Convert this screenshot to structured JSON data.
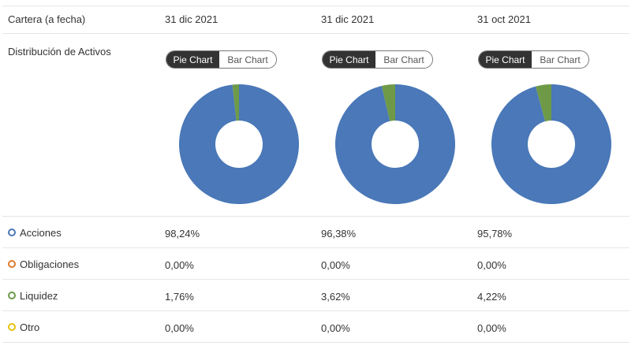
{
  "header": {
    "label": "Cartera (a fecha)",
    "dates": [
      "31 dic 2021",
      "31 dic 2021",
      "31 oct 2021"
    ]
  },
  "distribution": {
    "label": "Distribución de Activos",
    "toggle": {
      "pie_label": "Pie Chart",
      "bar_label": "Bar Chart"
    }
  },
  "colors": {
    "acciones": "#4a78b8",
    "obligaciones": "#e07b2a",
    "liquidez": "#6e9a48",
    "otro": "#e8c20e"
  },
  "rows": [
    {
      "key": "acciones",
      "label": "Acciones",
      "values": [
        "98,24%",
        "96,38%",
        "95,78%"
      ]
    },
    {
      "key": "obligaciones",
      "label": "Obligaciones",
      "values": [
        "0,00%",
        "0,00%",
        "0,00%"
      ]
    },
    {
      "key": "liquidez",
      "label": "Liquidez",
      "values": [
        "1,76%",
        "3,62%",
        "4,22%"
      ]
    },
    {
      "key": "otro",
      "label": "Otro",
      "values": [
        "0,00%",
        "0,00%",
        "0,00%"
      ]
    }
  ],
  "chart_data": [
    {
      "type": "pie",
      "date": "31 dic 2021",
      "categories": [
        "Acciones",
        "Obligaciones",
        "Liquidez",
        "Otro"
      ],
      "values": [
        98.24,
        0.0,
        1.76,
        0.0
      ]
    },
    {
      "type": "pie",
      "date": "31 dic 2021",
      "categories": [
        "Acciones",
        "Obligaciones",
        "Liquidez",
        "Otro"
      ],
      "values": [
        96.38,
        0.0,
        3.62,
        0.0
      ]
    },
    {
      "type": "pie",
      "date": "31 oct 2021",
      "categories": [
        "Acciones",
        "Obligaciones",
        "Liquidez",
        "Otro"
      ],
      "values": [
        95.78,
        0.0,
        4.22,
        0.0
      ]
    }
  ]
}
